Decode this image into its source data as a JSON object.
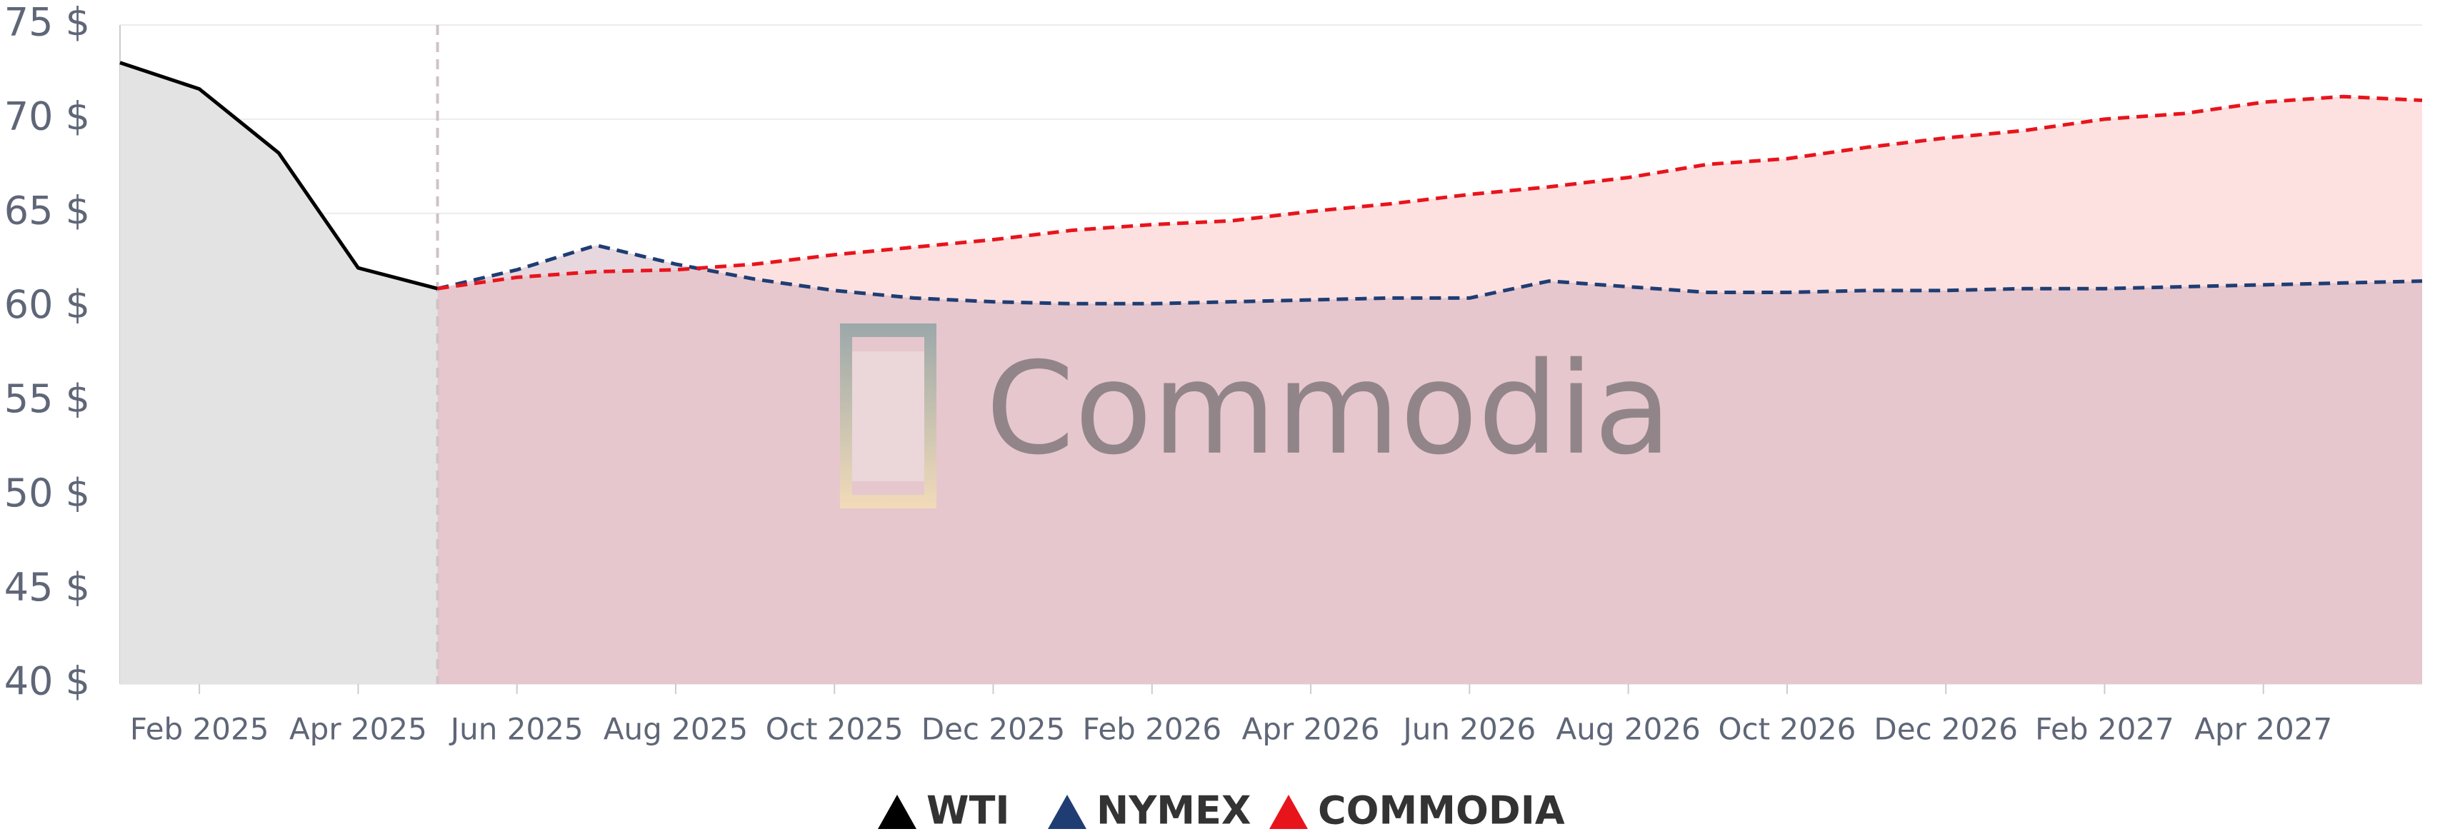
{
  "chart_data": {
    "type": "line",
    "watermark": "Commodia",
    "x": [
      "Jan 2025",
      "Feb 2025",
      "Mar 2025",
      "Apr 2025",
      "May 2025",
      "Jun 2025",
      "Jul 2025",
      "Aug 2025",
      "Sep 2025",
      "Oct 2025",
      "Nov 2025",
      "Dec 2025",
      "Jan 2026",
      "Feb 2026",
      "Mar 2026",
      "Apr 2026",
      "May 2026",
      "Jun 2026",
      "Jul 2026",
      "Aug 2026",
      "Sep 2026",
      "Oct 2026",
      "Nov 2026",
      "Dec 2026",
      "Jan 2027",
      "Feb 2027",
      "Mar 2027",
      "Apr 2027",
      "May 2027",
      "Jun 2027"
    ],
    "xticks": [
      "Feb 2025",
      "Apr 2025",
      "Jun 2025",
      "Aug 2025",
      "Oct 2025",
      "Dec 2025",
      "Feb 2026",
      "Apr 2026",
      "Jun 2026",
      "Aug 2026",
      "Oct 2026",
      "Dec 2026",
      "Feb 2027",
      "Apr 2027"
    ],
    "ylim": [
      40,
      75
    ],
    "yticks": [
      {
        "value": 40,
        "label": "40 $"
      },
      {
        "value": 45,
        "label": "45 $"
      },
      {
        "value": 50,
        "label": "50 $"
      },
      {
        "value": 55,
        "label": "55 $"
      },
      {
        "value": 60,
        "label": "60 $"
      },
      {
        "value": 65,
        "label": "65 $"
      },
      {
        "value": 70,
        "label": "70 $"
      },
      {
        "value": 75,
        "label": "75 $"
      }
    ],
    "grid": true,
    "legend": "bottom",
    "series": [
      {
        "name": "WTI",
        "color": "#000000",
        "fill": "#e3e3e3",
        "dashed": false,
        "values": [
          73.0,
          71.6,
          68.2,
          62.1,
          61.0,
          null,
          null,
          null,
          null,
          null,
          null,
          null,
          null,
          null,
          null,
          null,
          null,
          null,
          null,
          null,
          null,
          null,
          null,
          null,
          null,
          null,
          null,
          null,
          null,
          null
        ]
      },
      {
        "name": "NYMEX",
        "color": "#1f3d73",
        "fill": "#c9a9b8",
        "dashed": true,
        "values": [
          null,
          null,
          null,
          null,
          61.0,
          62.0,
          63.3,
          62.3,
          61.5,
          60.9,
          60.5,
          60.3,
          60.2,
          60.2,
          60.3,
          60.4,
          60.5,
          60.5,
          61.4,
          61.1,
          60.8,
          60.8,
          60.9,
          60.9,
          61.0,
          61.0,
          61.1,
          61.2,
          61.3,
          61.4
        ]
      },
      {
        "name": "COMMODIA",
        "color": "#e8141c",
        "fill": "#fde1e1",
        "dashed": true,
        "values": [
          null,
          null,
          null,
          null,
          61.0,
          61.6,
          61.9,
          62.0,
          62.3,
          62.8,
          63.2,
          63.6,
          64.1,
          64.4,
          64.6,
          65.1,
          65.5,
          66.0,
          66.4,
          66.9,
          67.6,
          67.9,
          68.5,
          69.0,
          69.4,
          70.0,
          70.3,
          70.9,
          71.2,
          71.0
        ]
      }
    ]
  }
}
